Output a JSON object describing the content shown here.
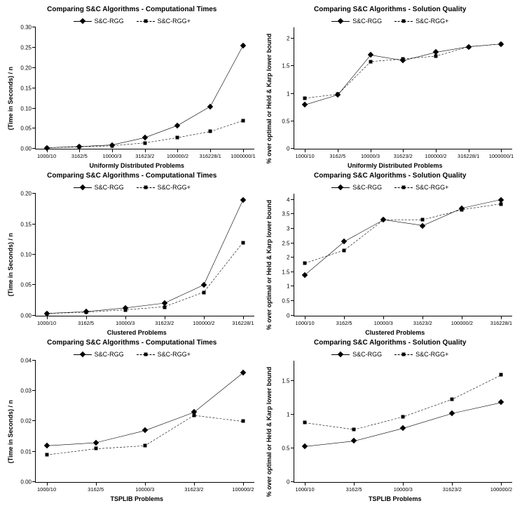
{
  "colors": {
    "fg": "#000000",
    "bg": "#ffffff"
  },
  "legend": {
    "series1": {
      "label": "S&C-RGG",
      "marker": "diamond",
      "dash": "solid"
    },
    "series2": {
      "label": "S&C-RGG+",
      "marker": "square",
      "dash": "dashed"
    }
  },
  "panels": [
    {
      "title": "Comparing S&C Algorithms - Computational Times",
      "ylabel": "(Time in Seconds) / n",
      "xlabel": "Uniformly Distributed Problems",
      "categories": [
        "1000/10",
        "3162/5",
        "10000/3",
        "31623/2",
        "100000/2",
        "316228/1",
        "1000000/1"
      ],
      "ylim": [
        0,
        0.3
      ],
      "ytick_step": 0.05,
      "yfmt": 2,
      "series1": [
        0.003,
        0.006,
        0.01,
        0.028,
        0.058,
        0.105,
        0.255
      ],
      "series2": [
        0.003,
        0.005,
        0.008,
        0.015,
        0.028,
        0.043,
        0.07
      ]
    },
    {
      "title": "Comparing S&C Algorithms - Solution Quality",
      "ylabel": "% over optimal or Held & Karp lower bound",
      "xlabel": "Uniformly Distributed Problems",
      "categories": [
        "1000/10",
        "3162/5",
        "10000/3",
        "31623/2",
        "100000/2",
        "316228/1",
        "1000000/1"
      ],
      "ylim": [
        0,
        2.2
      ],
      "ytick_step": 0.5,
      "yfmt": 1,
      "ymax_label": 2,
      "series1": [
        0.8,
        0.98,
        1.7,
        1.6,
        1.75,
        1.85,
        1.9
      ],
      "series2": [
        0.92,
        0.99,
        1.58,
        1.63,
        1.68,
        1.85,
        1.9
      ]
    },
    {
      "title": "Comparing S&C Algorithms - Computational Times",
      "ylabel": "(Time in Seconds) / n",
      "xlabel": "Clustered Problems",
      "categories": [
        "1000/10",
        "3162/5",
        "10000/3",
        "31623/2",
        "100000/2",
        "316228/1"
      ],
      "ylim": [
        0,
        0.2
      ],
      "ytick_step": 0.05,
      "yfmt": 2,
      "series1": [
        0.003,
        0.006,
        0.012,
        0.02,
        0.05,
        0.19
      ],
      "series2": [
        0.003,
        0.005,
        0.009,
        0.014,
        0.038,
        0.12
      ]
    },
    {
      "title": "Comparing S&C Algorithms - Solution Quality",
      "ylabel": "% over optimal or Held & Karp lower bound",
      "xlabel": "Clustered Problems",
      "categories": [
        "1000/10",
        "3162/5",
        "10000/3",
        "31623/2",
        "100000/2",
        "316228/1"
      ],
      "ylim": [
        0,
        4.2
      ],
      "ytick_step": 0.5,
      "yfmt": 1,
      "ymax_label": 4,
      "series1": [
        1.4,
        2.55,
        3.3,
        3.1,
        3.7,
        4.0
      ],
      "series2": [
        1.8,
        2.25,
        3.3,
        3.3,
        3.65,
        3.85
      ]
    },
    {
      "title": "Comparing S&C Algorithms - Computational Times",
      "ylabel": "(Time in Seconds) / n",
      "xlabel": "TSPLIB Problems",
      "categories": [
        "1000/10",
        "3162/5",
        "10000/3",
        "31623/2",
        "100000/2"
      ],
      "ylim": [
        0,
        0.04
      ],
      "ytick_step": 0.01,
      "yfmt": 2,
      "series1": [
        0.012,
        0.013,
        0.017,
        0.023,
        0.036
      ],
      "series2": [
        0.009,
        0.011,
        0.012,
        0.022,
        0.02
      ]
    },
    {
      "title": "Comparing S&C Algorithms - Solution Quality",
      "ylabel": "% over optimal or Held & Karp lower bound",
      "xlabel": "TSPLIB Problems",
      "categories": [
        "1000/10",
        "3162/5",
        "10000/3",
        "31623/2",
        "100000/2"
      ],
      "ylim": [
        0,
        1.8
      ],
      "ytick_step": 0.5,
      "yfmt": 1,
      "ymax_label": 1.5,
      "series1": [
        0.53,
        0.61,
        0.8,
        1.02,
        1.18
      ],
      "series2": [
        0.88,
        0.78,
        0.97,
        1.23,
        1.59
      ]
    }
  ]
}
